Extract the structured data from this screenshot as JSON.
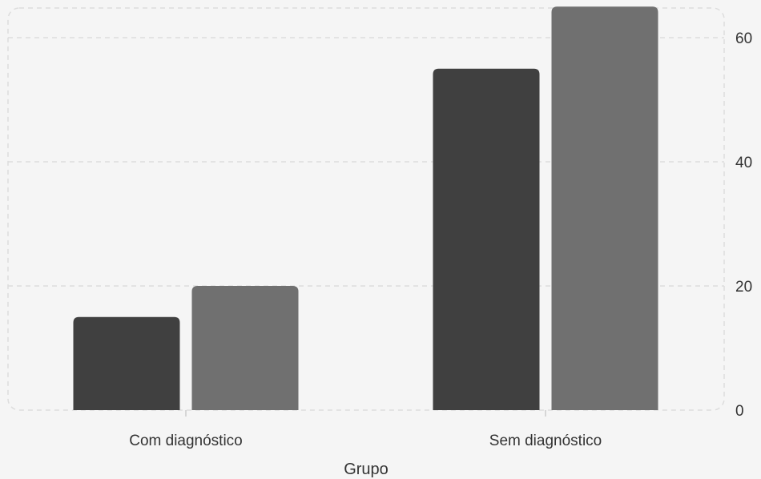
{
  "chart_data": {
    "type": "bar",
    "categories": [
      "Com diagnóstico",
      "Sem diagnóstico"
    ],
    "series": [
      {
        "values": [
          15,
          55
        ],
        "color": "#404040"
      },
      {
        "values": [
          20,
          65
        ],
        "color": "#707070"
      }
    ],
    "xlabel": "Grupo",
    "ylabel": "",
    "ylim": [
      0,
      65
    ],
    "yticks": [
      0,
      20,
      40,
      60
    ],
    "y_axis_position": "right",
    "grid": true,
    "grid_style": "dashed",
    "legend": "none",
    "background": "#f5f5f5"
  }
}
